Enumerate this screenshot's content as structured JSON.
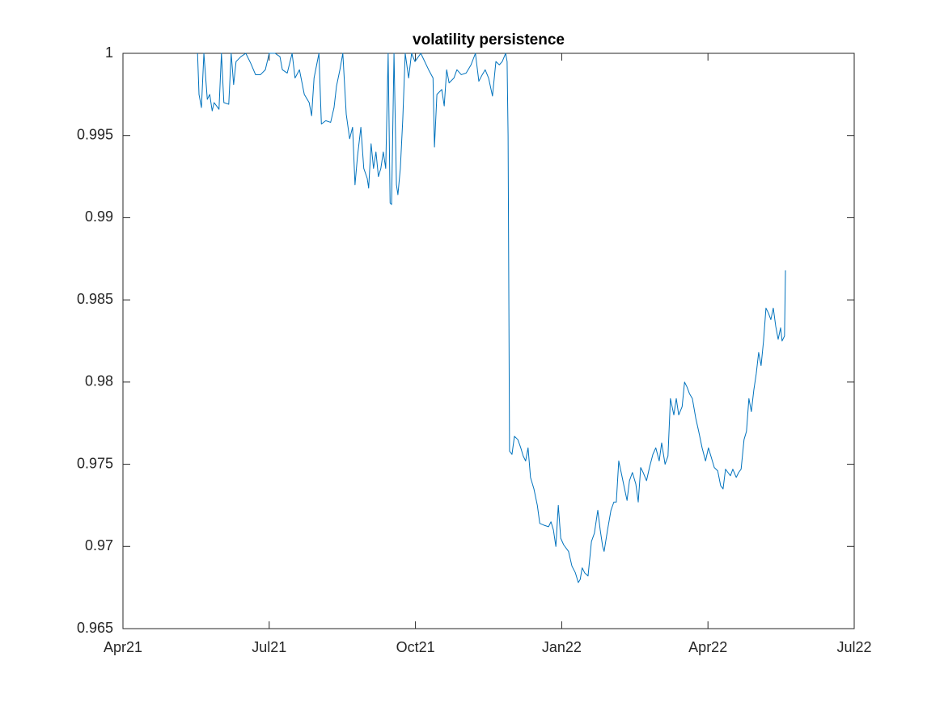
{
  "chart_data": {
    "type": "line",
    "title": "volatility persistence",
    "xlim": [
      0,
      15
    ],
    "xticks": [
      {
        "value": 0,
        "label": "Apr21"
      },
      {
        "value": 3,
        "label": "Jul21"
      },
      {
        "value": 6,
        "label": "Oct21"
      },
      {
        "value": 9,
        "label": "Jan22"
      },
      {
        "value": 12,
        "label": "Apr22"
      },
      {
        "value": 15,
        "label": "Jul22"
      }
    ],
    "ylim": [
      0.965,
      1
    ],
    "yticks": [
      0.965,
      0.97,
      0.975,
      0.98,
      0.985,
      0.99,
      0.995,
      1
    ],
    "x": [
      1.53,
      1.56,
      1.61,
      1.66,
      1.73,
      1.78,
      1.83,
      1.87,
      1.92,
      1.97,
      2.02,
      2.07,
      2.17,
      2.22,
      2.27,
      2.32,
      2.42,
      2.52,
      2.62,
      2.72,
      2.82,
      2.92,
      3.0,
      3.12,
      3.22,
      3.27,
      3.37,
      3.47,
      3.53,
      3.62,
      3.72,
      3.82,
      3.87,
      3.92,
      4.02,
      4.07,
      4.16,
      4.26,
      4.33,
      4.38,
      4.45,
      4.51,
      4.58,
      4.65,
      4.71,
      4.76,
      4.81,
      4.88,
      4.94,
      5.01,
      5.04,
      5.09,
      5.14,
      5.19,
      5.24,
      5.29,
      5.34,
      5.39,
      5.44,
      5.48,
      5.51,
      5.56,
      5.61,
      5.64,
      5.69,
      5.74,
      5.79,
      5.86,
      5.92,
      5.99,
      6.11,
      6.27,
      6.36,
      6.39,
      6.44,
      6.54,
      6.59,
      6.64,
      6.69,
      6.79,
      6.85,
      6.94,
      7.04,
      7.14,
      7.23,
      7.3,
      7.37,
      7.43,
      7.5,
      7.58,
      7.65,
      7.72,
      7.78,
      7.85,
      7.88,
      7.9,
      7.93,
      7.98,
      8.03,
      8.1,
      8.16,
      8.21,
      8.26,
      8.31,
      8.36,
      8.43,
      8.5,
      8.55,
      8.63,
      8.73,
      8.78,
      8.83,
      8.88,
      8.93,
      8.98,
      9.04,
      9.14,
      9.21,
      9.28,
      9.34,
      9.38,
      9.42,
      9.47,
      9.54,
      9.61,
      9.67,
      9.74,
      9.79,
      9.84,
      9.87,
      9.94,
      10.01,
      10.07,
      10.12,
      10.17,
      10.22,
      10.29,
      10.34,
      10.39,
      10.45,
      10.52,
      10.57,
      10.62,
      10.67,
      10.74,
      10.8,
      10.87,
      10.93,
      11.0,
      11.05,
      11.12,
      11.18,
      11.23,
      11.3,
      11.35,
      11.4,
      11.47,
      11.52,
      11.57,
      11.62,
      11.68,
      11.75,
      11.81,
      11.88,
      11.95,
      12.01,
      12.06,
      12.13,
      12.2,
      12.26,
      12.31,
      12.36,
      12.41,
      12.46,
      12.51,
      12.58,
      12.63,
      12.68,
      12.74,
      12.79,
      12.84,
      12.89,
      12.94,
      12.99,
      13.04,
      13.09,
      13.14,
      13.19,
      13.24,
      13.29,
      13.34,
      13.39,
      13.44,
      13.49,
      13.52,
      13.57,
      13.59
    ],
    "series": [
      {
        "color": "#0072bd",
        "values": [
          1.0,
          0.9975,
          0.9967,
          1.0,
          0.9972,
          0.9975,
          0.9965,
          0.997,
          0.9968,
          0.9966,
          1.0,
          0.997,
          0.9969,
          1.0,
          0.9981,
          0.9995,
          0.9998,
          1.0,
          0.9994,
          0.9987,
          0.9987,
          0.999,
          1.0,
          1.0,
          0.9998,
          0.999,
          0.9988,
          1.0,
          0.9985,
          0.999,
          0.9975,
          0.997,
          0.9962,
          0.9985,
          1.0,
          0.9957,
          0.9959,
          0.9958,
          0.9967,
          0.998,
          0.999,
          1.0,
          0.9963,
          0.9948,
          0.9955,
          0.992,
          0.9937,
          0.9955,
          0.993,
          0.9924,
          0.9918,
          0.9945,
          0.993,
          0.994,
          0.9925,
          0.993,
          0.994,
          0.993,
          1.0,
          0.9909,
          0.9908,
          1.0,
          0.992,
          0.9914,
          0.993,
          0.996,
          1.0,
          0.9985,
          1.0,
          0.9995,
          1.0,
          0.999,
          0.9985,
          0.9943,
          0.9975,
          0.9978,
          0.9968,
          0.999,
          0.9982,
          0.9985,
          0.999,
          0.9987,
          0.9988,
          0.9993,
          1.0,
          0.9983,
          0.9987,
          0.999,
          0.9985,
          0.9974,
          0.9995,
          0.9993,
          0.9995,
          1.0,
          0.9995,
          0.995,
          0.9758,
          0.9756,
          0.9767,
          0.9765,
          0.976,
          0.9755,
          0.9752,
          0.976,
          0.9742,
          0.9735,
          0.9725,
          0.9714,
          0.9713,
          0.9712,
          0.9715,
          0.971,
          0.97,
          0.9725,
          0.9705,
          0.9701,
          0.9697,
          0.9688,
          0.9684,
          0.9678,
          0.968,
          0.9687,
          0.9684,
          0.9682,
          0.9703,
          0.9708,
          0.9722,
          0.971,
          0.97,
          0.9697,
          0.971,
          0.9722,
          0.9727,
          0.9727,
          0.9752,
          0.9745,
          0.9735,
          0.9728,
          0.974,
          0.9745,
          0.9738,
          0.9727,
          0.9748,
          0.9745,
          0.974,
          0.9748,
          0.9756,
          0.976,
          0.9752,
          0.9763,
          0.975,
          0.9755,
          0.979,
          0.978,
          0.979,
          0.978,
          0.9785,
          0.98,
          0.9797,
          0.9793,
          0.979,
          0.9778,
          0.977,
          0.976,
          0.9752,
          0.976,
          0.9755,
          0.9748,
          0.9746,
          0.9737,
          0.9735,
          0.9747,
          0.9745,
          0.9743,
          0.9747,
          0.9742,
          0.9745,
          0.9747,
          0.9765,
          0.977,
          0.979,
          0.9782,
          0.9795,
          0.9805,
          0.9818,
          0.981,
          0.9825,
          0.9845,
          0.9842,
          0.9838,
          0.9845,
          0.9834,
          0.9826,
          0.9833,
          0.9825,
          0.9828,
          0.9868
        ]
      }
    ]
  }
}
